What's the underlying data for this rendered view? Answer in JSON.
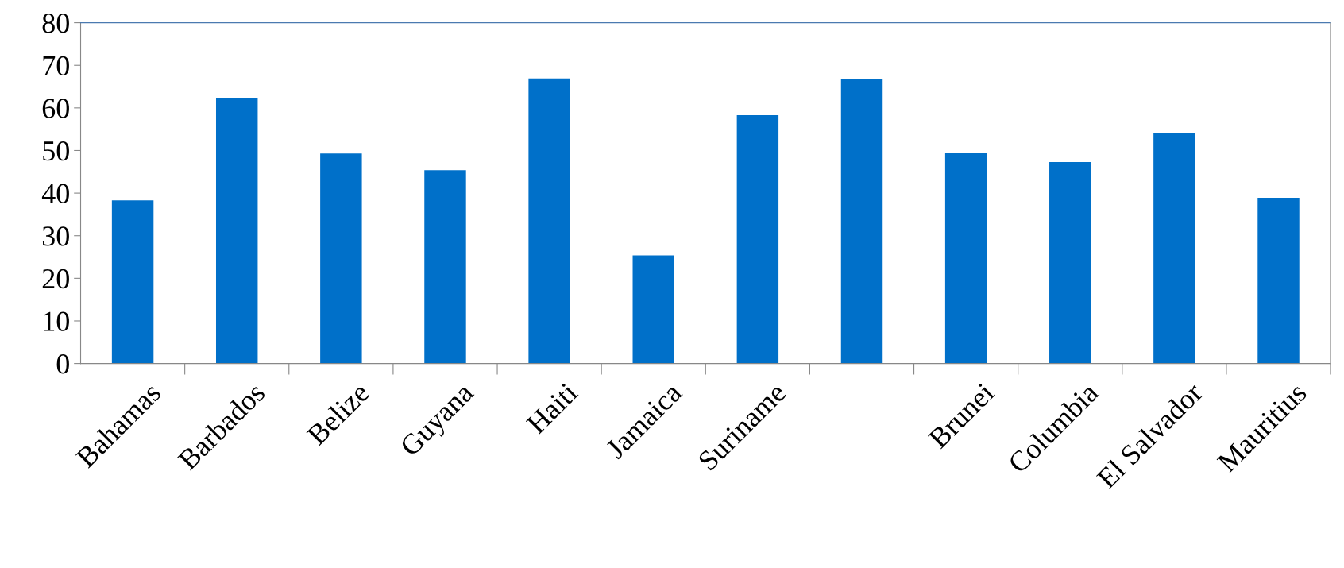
{
  "chart_data": {
    "type": "bar",
    "categories": [
      "Bahamas",
      "Barbados",
      "Belize",
      "Guyana",
      "Haiti",
      "Jamaica",
      "Suriname",
      null,
      "Brunei",
      "Columbia",
      "El Salvador",
      "Mauritius"
    ],
    "values": [
      38.3,
      62.4,
      49.3,
      45.4,
      66.9,
      25.4,
      58.3,
      66.7,
      49.5,
      47.3,
      54.0,
      38.9
    ],
    "color": "#0070c9",
    "ylim": [
      0,
      80
    ],
    "yticks": [
      0,
      10,
      20,
      30,
      40,
      50,
      60,
      70,
      80
    ],
    "grid": false,
    "legend": false
  }
}
